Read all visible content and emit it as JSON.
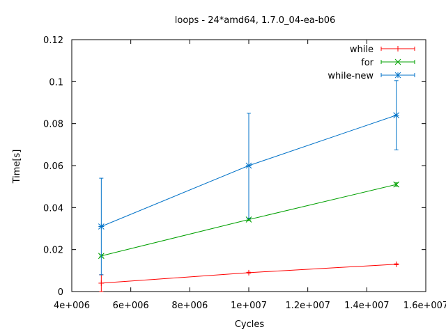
{
  "chart_data": {
    "type": "line",
    "title": "loops - 24*amd64, 1.7.0_04-ea-b06",
    "xlabel": "Cycles",
    "ylabel": "Time[s]",
    "xlim": [
      4000000,
      16000000
    ],
    "ylim": [
      0,
      0.12
    ],
    "x_ticks": [
      {
        "value": 4000000,
        "label": "4e+006"
      },
      {
        "value": 6000000,
        "label": "6e+006"
      },
      {
        "value": 8000000,
        "label": "8e+006"
      },
      {
        "value": 10000000,
        "label": "1e+007"
      },
      {
        "value": 12000000,
        "label": "1.2e+007"
      },
      {
        "value": 14000000,
        "label": "1.4e+007"
      },
      {
        "value": 16000000,
        "label": "1.6e+007"
      }
    ],
    "y_ticks": [
      {
        "value": 0,
        "label": "0"
      },
      {
        "value": 0.02,
        "label": "0.02"
      },
      {
        "value": 0.04,
        "label": "0.04"
      },
      {
        "value": 0.06,
        "label": "0.06"
      },
      {
        "value": 0.08,
        "label": "0.08"
      },
      {
        "value": 0.1,
        "label": "0.1"
      },
      {
        "value": 0.12,
        "label": "0.12"
      }
    ],
    "x": [
      5000000,
      10000000,
      15000000
    ],
    "legend_position": "top-right",
    "grid": false,
    "series": [
      {
        "name": "while",
        "color": "#ff0000",
        "marker": "plus",
        "values": [
          0.004,
          0.009,
          0.013
        ],
        "err_low": [
          0.0,
          0.0088,
          0.0128
        ],
        "err_high": [
          0.008,
          0.0092,
          0.0132
        ]
      },
      {
        "name": "for",
        "color": "#00a000",
        "marker": "cross",
        "values": [
          0.017,
          0.0343,
          0.051
        ],
        "err_low": [
          0.0165,
          0.0338,
          0.0502
        ],
        "err_high": [
          0.0175,
          0.0348,
          0.0518
        ]
      },
      {
        "name": "while-new",
        "color": "#0072c8",
        "marker": "star",
        "values": [
          0.031,
          0.06,
          0.084
        ],
        "err_low": [
          0.008,
          0.035,
          0.0675
        ],
        "err_high": [
          0.054,
          0.085,
          0.1005
        ]
      }
    ]
  }
}
